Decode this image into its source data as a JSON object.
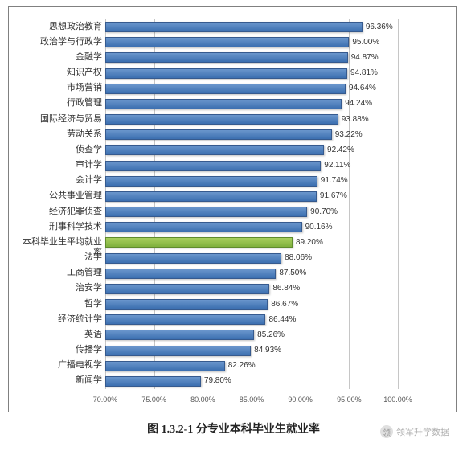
{
  "chart": {
    "type": "bar-horizontal",
    "categories": [
      "思想政治教育",
      "政治学与行政学",
      "金融学",
      "知识产权",
      "市场营销",
      "行政管理",
      "国际经济与贸易",
      "劳动关系",
      "侦查学",
      "审计学",
      "会计学",
      "公共事业管理",
      "经济犯罪侦查",
      "刑事科学技术",
      "本科毕业生平均就业率",
      "法学",
      "工商管理",
      "治安学",
      "哲学",
      "经济统计学",
      "英语",
      "传播学",
      "广播电视学",
      "新闻学"
    ],
    "values": [
      96.36,
      95.0,
      94.87,
      94.81,
      94.64,
      94.24,
      93.88,
      93.22,
      92.42,
      92.11,
      91.74,
      91.67,
      90.7,
      90.16,
      89.2,
      88.06,
      87.5,
      86.84,
      86.67,
      86.44,
      85.26,
      84.93,
      82.26,
      79.8
    ],
    "value_labels": [
      "96.36%",
      "95.00%",
      "94.87%",
      "94.81%",
      "94.64%",
      "94.24%",
      "93.88%",
      "93.22%",
      "92.42%",
      "92.11%",
      "91.74%",
      "91.67%",
      "90.70%",
      "90.16%",
      "89.20%",
      "88.06%",
      "87.50%",
      "86.84%",
      "86.67%",
      "86.44%",
      "85.26%",
      "84.93%",
      "82.26%",
      "79.80%"
    ],
    "highlight_index": 14,
    "bar_fill_default": "linear-gradient(to bottom,#6a96cc,#3c6fb0)",
    "bar_fill_highlight": "linear-gradient(to bottom,#a8cf5f,#7fb03d)",
    "bar_border_default": "#365a8e",
    "bar_border_highlight": "#5f8b2e",
    "xmin": 70,
    "xmax": 100,
    "xticks": [
      70,
      75,
      80,
      85,
      90,
      95,
      100
    ],
    "xtick_labels": [
      "70.00%",
      "75.00%",
      "80.00%",
      "85.00%",
      "90.00%",
      "95.00%",
      "100.00%"
    ],
    "grid_color": "rgba(128,128,128,0.45)",
    "background_color": "#ffffff",
    "label_fontsize": 11,
    "value_fontsize": 10,
    "tick_fontsize": 9
  },
  "caption": "图 1.3.2-1 分专业本科毕业生就业率",
  "watermark": {
    "text": "领军升学数据",
    "icon": "领"
  }
}
